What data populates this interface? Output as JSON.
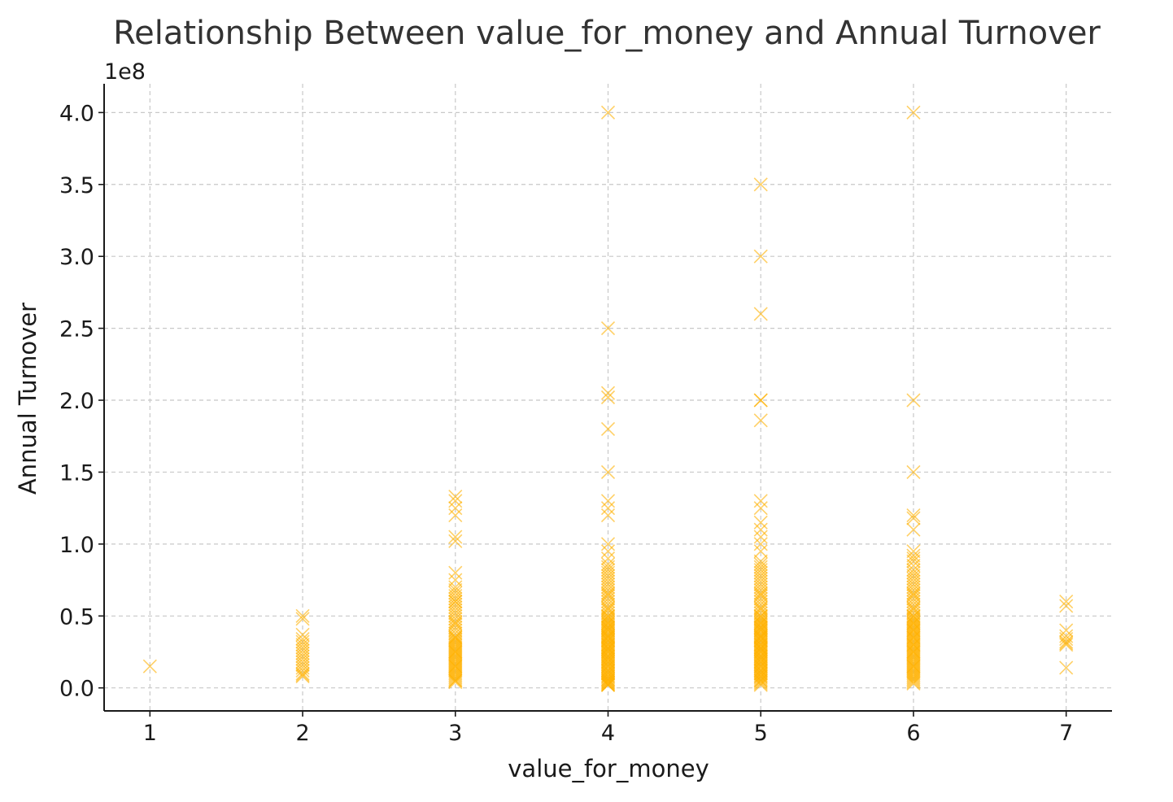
{
  "chart_data": {
    "type": "scatter",
    "title": "Relationship Between value_for_money and Annual Turnover",
    "xlabel": "value_for_money",
    "ylabel": "Annual Turnover",
    "y_offset_label": "1e8",
    "xlim": [
      0.7,
      7.3
    ],
    "ylim": [
      -0.16,
      4.2
    ],
    "y_scale_factor": 100000000,
    "x_ticks": [
      1,
      2,
      3,
      4,
      5,
      6,
      7
    ],
    "x_tick_labels": [
      "1",
      "2",
      "3",
      "4",
      "5",
      "6",
      "7"
    ],
    "y_ticks": [
      0.0,
      0.5,
      1.0,
      1.5,
      2.0,
      2.5,
      3.0,
      3.5,
      4.0
    ],
    "y_tick_labels": [
      "0.0",
      "0.5",
      "1.0",
      "1.5",
      "2.0",
      "2.5",
      "3.0",
      "3.5",
      "4.0"
    ],
    "grid": true,
    "marker": "x",
    "point_color": "#FFB000",
    "point_alpha": 0.6,
    "points_x": [
      1,
      2,
      2,
      2,
      2,
      2,
      2,
      2,
      2,
      2,
      2,
      2,
      2,
      2,
      2,
      2,
      2,
      2,
      2,
      3,
      3,
      3,
      3,
      3,
      3,
      3,
      3,
      3,
      3,
      3,
      3,
      3,
      3,
      3,
      3,
      3,
      3,
      3,
      3,
      3,
      3,
      3,
      3,
      3,
      3,
      3,
      3,
      3,
      3,
      3,
      3,
      3,
      3,
      3,
      3,
      3,
      3,
      3,
      3,
      3,
      3,
      3,
      3,
      3,
      3,
      3,
      3,
      3,
      3,
      3,
      3,
      3,
      3,
      3,
      3,
      3,
      3,
      3,
      3,
      3,
      3,
      3,
      3,
      4,
      4,
      4,
      4,
      4,
      4,
      4,
      4,
      4,
      4,
      4,
      4,
      4,
      4,
      4,
      4,
      4,
      4,
      4,
      4,
      4,
      4,
      4,
      4,
      4,
      4,
      4,
      4,
      4,
      4,
      4,
      4,
      4,
      4,
      4,
      4,
      4,
      4,
      4,
      4,
      4,
      4,
      4,
      4,
      4,
      4,
      4,
      4,
      4,
      4,
      4,
      4,
      4,
      4,
      4,
      4,
      4,
      4,
      4,
      4,
      4,
      4,
      4,
      4,
      4,
      4,
      4,
      4,
      4,
      4,
      4,
      4,
      4,
      4,
      4,
      4,
      4,
      4,
      4,
      4,
      4,
      4,
      4,
      4,
      4,
      4,
      4,
      4,
      4,
      4,
      4,
      4,
      4,
      4,
      4,
      4,
      4,
      4,
      4,
      4,
      4,
      4,
      4,
      4,
      4,
      5,
      5,
      5,
      5,
      5,
      5,
      5,
      5,
      5,
      5,
      5,
      5,
      5,
      5,
      5,
      5,
      5,
      5,
      5,
      5,
      5,
      5,
      5,
      5,
      5,
      5,
      5,
      5,
      5,
      5,
      5,
      5,
      5,
      5,
      5,
      5,
      5,
      5,
      5,
      5,
      5,
      5,
      5,
      5,
      5,
      5,
      5,
      5,
      5,
      5,
      5,
      5,
      5,
      5,
      5,
      5,
      5,
      5,
      5,
      5,
      5,
      5,
      5,
      5,
      5,
      5,
      5,
      5,
      5,
      5,
      5,
      5,
      5,
      5,
      5,
      5,
      5,
      5,
      5,
      5,
      5,
      5,
      5,
      5,
      5,
      5,
      5,
      5,
      5,
      5,
      5,
      5,
      5,
      5,
      5,
      5,
      5,
      5,
      5,
      5,
      5,
      5,
      6,
      6,
      6,
      6,
      6,
      6,
      6,
      6,
      6,
      6,
      6,
      6,
      6,
      6,
      6,
      6,
      6,
      6,
      6,
      6,
      6,
      6,
      6,
      6,
      6,
      6,
      6,
      6,
      6,
      6,
      6,
      6,
      6,
      6,
      6,
      6,
      6,
      6,
      6,
      6,
      6,
      6,
      6,
      6,
      6,
      6,
      6,
      6,
      6,
      6,
      6,
      6,
      6,
      6,
      6,
      6,
      6,
      6,
      6,
      6,
      6,
      6,
      6,
      6,
      6,
      6,
      6,
      6,
      6,
      6,
      6,
      6,
      6,
      6,
      6,
      6,
      6,
      6,
      6,
      6,
      6,
      6,
      6,
      6,
      7,
      7,
      7,
      7,
      7,
      7,
      7,
      7,
      7
    ],
    "points_y": [
      0.15,
      0.5,
      0.48,
      0.37,
      0.34,
      0.32,
      0.3,
      0.28,
      0.26,
      0.24,
      0.22,
      0.2,
      0.18,
      0.16,
      0.14,
      0.12,
      0.1,
      0.09,
      0.08,
      1.33,
      1.3,
      1.25,
      1.2,
      1.05,
      1.02,
      0.8,
      0.75,
      0.7,
      0.68,
      0.66,
      0.64,
      0.62,
      0.6,
      0.58,
      0.56,
      0.54,
      0.52,
      0.5,
      0.48,
      0.46,
      0.44,
      0.42,
      0.4,
      0.38,
      0.36,
      0.35,
      0.34,
      0.33,
      0.32,
      0.31,
      0.3,
      0.29,
      0.28,
      0.27,
      0.26,
      0.25,
      0.24,
      0.23,
      0.22,
      0.21,
      0.2,
      0.19,
      0.18,
      0.17,
      0.16,
      0.15,
      0.14,
      0.13,
      0.12,
      0.11,
      0.1,
      0.09,
      0.08,
      0.07,
      0.06,
      0.05,
      0.04,
      0.6,
      0.45,
      0.35,
      0.25,
      0.15,
      0.05,
      4.0,
      2.5,
      2.05,
      2.02,
      1.8,
      1.5,
      1.3,
      1.25,
      1.2,
      1.0,
      0.95,
      0.9,
      0.86,
      0.84,
      0.82,
      0.8,
      0.78,
      0.76,
      0.74,
      0.72,
      0.7,
      0.68,
      0.66,
      0.64,
      0.62,
      0.6,
      0.58,
      0.56,
      0.54,
      0.52,
      0.5,
      0.49,
      0.48,
      0.47,
      0.46,
      0.45,
      0.44,
      0.43,
      0.42,
      0.41,
      0.4,
      0.39,
      0.38,
      0.37,
      0.36,
      0.35,
      0.34,
      0.33,
      0.32,
      0.31,
      0.3,
      0.29,
      0.28,
      0.27,
      0.26,
      0.25,
      0.24,
      0.23,
      0.22,
      0.21,
      0.2,
      0.19,
      0.18,
      0.17,
      0.16,
      0.15,
      0.14,
      0.13,
      0.12,
      0.11,
      0.1,
      0.09,
      0.08,
      0.07,
      0.06,
      0.05,
      0.04,
      0.03,
      0.02,
      0.55,
      0.45,
      0.35,
      0.25,
      0.15,
      0.65,
      0.5,
      0.4,
      0.3,
      0.2,
      0.1,
      0.42,
      0.36,
      0.28,
      0.18,
      0.12,
      0.33,
      0.27,
      0.22,
      0.08,
      0.06,
      0.05,
      0.04,
      0.03,
      0.02,
      0.02,
      3.5,
      3.0,
      2.6,
      2.0,
      2.0,
      1.86,
      1.3,
      1.25,
      1.15,
      1.1,
      1.05,
      1.0,
      0.95,
      0.88,
      0.86,
      0.84,
      0.82,
      0.8,
      0.78,
      0.76,
      0.74,
      0.72,
      0.7,
      0.68,
      0.66,
      0.64,
      0.62,
      0.6,
      0.58,
      0.56,
      0.54,
      0.52,
      0.5,
      0.49,
      0.48,
      0.47,
      0.46,
      0.45,
      0.44,
      0.43,
      0.42,
      0.41,
      0.4,
      0.39,
      0.38,
      0.37,
      0.36,
      0.35,
      0.34,
      0.33,
      0.32,
      0.31,
      0.3,
      0.29,
      0.28,
      0.27,
      0.26,
      0.25,
      0.24,
      0.23,
      0.22,
      0.21,
      0.2,
      0.19,
      0.18,
      0.17,
      0.16,
      0.15,
      0.14,
      0.13,
      0.12,
      0.11,
      0.1,
      0.09,
      0.08,
      0.07,
      0.06,
      0.05,
      0.04,
      0.03,
      0.02,
      0.55,
      0.45,
      0.35,
      0.25,
      0.15,
      0.65,
      0.5,
      0.4,
      0.3,
      0.2,
      0.1,
      0.42,
      0.36,
      0.28,
      0.18,
      0.12,
      0.33,
      0.27,
      0.22,
      0.08,
      0.05,
      4.0,
      2.0,
      1.5,
      1.2,
      1.18,
      1.1,
      0.95,
      0.92,
      0.9,
      0.88,
      0.85,
      0.82,
      0.8,
      0.78,
      0.76,
      0.74,
      0.72,
      0.7,
      0.68,
      0.66,
      0.64,
      0.62,
      0.6,
      0.58,
      0.56,
      0.54,
      0.52,
      0.5,
      0.49,
      0.48,
      0.47,
      0.46,
      0.45,
      0.44,
      0.43,
      0.42,
      0.41,
      0.4,
      0.39,
      0.38,
      0.37,
      0.36,
      0.35,
      0.34,
      0.33,
      0.32,
      0.31,
      0.3,
      0.29,
      0.28,
      0.27,
      0.26,
      0.25,
      0.24,
      0.23,
      0.22,
      0.21,
      0.2,
      0.19,
      0.18,
      0.17,
      0.16,
      0.15,
      0.14,
      0.13,
      0.12,
      0.11,
      0.1,
      0.09,
      0.08,
      0.07,
      0.06,
      0.05,
      0.04,
      0.03,
      0.55,
      0.45,
      0.35,
      0.25,
      0.15,
      0.65,
      0.5,
      0.4,
      0.3,
      0.6,
      0.57,
      0.4,
      0.36,
      0.34,
      0.32,
      0.31,
      0.3,
      0.14
    ]
  }
}
